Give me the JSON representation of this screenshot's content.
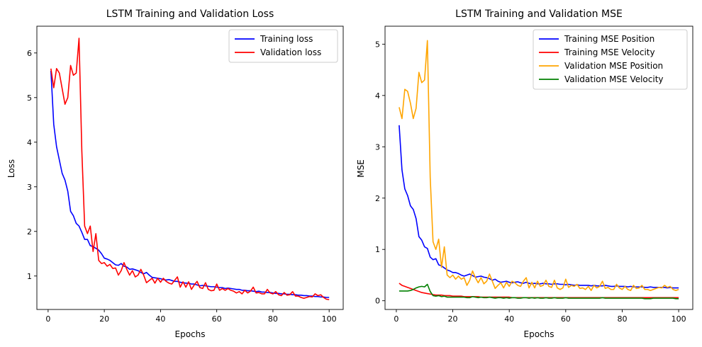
{
  "chart_data": [
    {
      "type": "line",
      "title": "LSTM Training and Validation Loss",
      "xlabel": "Epochs",
      "ylabel": "Loss",
      "xlim": [
        -4,
        105
      ],
      "ylim": [
        0.25,
        6.6
      ],
      "xticks": [
        0,
        20,
        40,
        60,
        80,
        100
      ],
      "yticks": [
        1,
        2,
        3,
        4,
        5,
        6
      ],
      "grid": false,
      "legend": "upper right",
      "x": [
        1,
        2,
        3,
        4,
        5,
        6,
        7,
        8,
        9,
        10,
        11,
        12,
        13,
        14,
        15,
        16,
        17,
        18,
        19,
        20,
        21,
        22,
        23,
        24,
        25,
        26,
        27,
        28,
        29,
        30,
        31,
        32,
        33,
        34,
        35,
        36,
        37,
        38,
        39,
        40,
        41,
        42,
        43,
        44,
        45,
        46,
        47,
        48,
        49,
        50,
        51,
        52,
        53,
        54,
        55,
        56,
        57,
        58,
        59,
        60,
        61,
        62,
        63,
        64,
        65,
        66,
        67,
        68,
        69,
        70,
        71,
        72,
        73,
        74,
        75,
        76,
        77,
        78,
        79,
        80,
        81,
        82,
        83,
        84,
        85,
        86,
        87,
        88,
        89,
        90,
        91,
        92,
        93,
        94,
        95,
        96,
        97,
        98,
        99,
        100
      ],
      "series": [
        {
          "name": "Training loss",
          "color": "#0000ff",
          "values": [
            5.6,
            4.4,
            3.9,
            3.6,
            3.3,
            3.15,
            2.9,
            2.45,
            2.35,
            2.18,
            2.12,
            1.98,
            1.82,
            1.82,
            1.68,
            1.66,
            1.62,
            1.58,
            1.5,
            1.4,
            1.38,
            1.35,
            1.3,
            1.25,
            1.24,
            1.28,
            1.22,
            1.2,
            1.15,
            1.16,
            1.14,
            1.12,
            1.08,
            1.05,
            1.08,
            1.02,
            0.97,
            0.96,
            0.95,
            0.94,
            0.92,
            0.91,
            0.92,
            0.9,
            0.88,
            0.88,
            0.86,
            0.85,
            0.84,
            0.84,
            0.82,
            0.82,
            0.8,
            0.78,
            0.79,
            0.78,
            0.77,
            0.76,
            0.76,
            0.75,
            0.74,
            0.74,
            0.72,
            0.73,
            0.72,
            0.71,
            0.7,
            0.7,
            0.68,
            0.68,
            0.67,
            0.67,
            0.66,
            0.65,
            0.66,
            0.64,
            0.64,
            0.63,
            0.63,
            0.62,
            0.61,
            0.61,
            0.6,
            0.6,
            0.59,
            0.59,
            0.58,
            0.58,
            0.57,
            0.57,
            0.56,
            0.56,
            0.55,
            0.55,
            0.54,
            0.54,
            0.53,
            0.53,
            0.52,
            0.52
          ]
        },
        {
          "name": "Validation loss",
          "color": "#ff0000",
          "values": [
            5.65,
            5.22,
            5.65,
            5.55,
            5.2,
            4.85,
            5.0,
            5.72,
            5.5,
            5.55,
            6.33,
            3.8,
            2.12,
            1.95,
            2.12,
            1.55,
            1.95,
            1.35,
            1.28,
            1.3,
            1.22,
            1.26,
            1.17,
            1.18,
            1.02,
            1.12,
            1.3,
            1.15,
            1.02,
            1.12,
            0.98,
            1.02,
            1.15,
            1.02,
            0.85,
            0.9,
            0.95,
            0.84,
            0.95,
            0.86,
            0.95,
            0.88,
            0.84,
            0.82,
            0.9,
            0.98,
            0.75,
            0.87,
            0.75,
            0.87,
            0.7,
            0.8,
            0.88,
            0.74,
            0.72,
            0.85,
            0.7,
            0.67,
            0.68,
            0.82,
            0.68,
            0.72,
            0.68,
            0.72,
            0.68,
            0.66,
            0.62,
            0.65,
            0.6,
            0.68,
            0.62,
            0.66,
            0.75,
            0.62,
            0.63,
            0.6,
            0.6,
            0.7,
            0.62,
            0.6,
            0.65,
            0.58,
            0.56,
            0.63,
            0.57,
            0.58,
            0.65,
            0.55,
            0.55,
            0.52,
            0.5,
            0.52,
            0.54,
            0.53,
            0.6,
            0.56,
            0.58,
            0.52,
            0.48,
            0.47
          ]
        }
      ]
    },
    {
      "type": "line",
      "title": "LSTM Training and Validation MSE",
      "xlabel": "Epochs",
      "ylabel": "MSE",
      "xlim": [
        -4,
        105
      ],
      "ylim": [
        -0.17,
        5.35
      ],
      "xticks": [
        0,
        20,
        40,
        60,
        80,
        100
      ],
      "yticks": [
        0,
        1,
        2,
        3,
        4,
        5
      ],
      "grid": false,
      "legend": "upper right",
      "x": [
        1,
        2,
        3,
        4,
        5,
        6,
        7,
        8,
        9,
        10,
        11,
        12,
        13,
        14,
        15,
        16,
        17,
        18,
        19,
        20,
        21,
        22,
        23,
        24,
        25,
        26,
        27,
        28,
        29,
        30,
        31,
        32,
        33,
        34,
        35,
        36,
        37,
        38,
        39,
        40,
        41,
        42,
        43,
        44,
        45,
        46,
        47,
        48,
        49,
        50,
        51,
        52,
        53,
        54,
        55,
        56,
        57,
        58,
        59,
        60,
        61,
        62,
        63,
        64,
        65,
        66,
        67,
        68,
        69,
        70,
        71,
        72,
        73,
        74,
        75,
        76,
        77,
        78,
        79,
        80,
        81,
        82,
        83,
        84,
        85,
        86,
        87,
        88,
        89,
        90,
        91,
        92,
        93,
        94,
        95,
        96,
        97,
        98,
        99,
        100
      ],
      "series": [
        {
          "name": "Training MSE Position",
          "color": "#0000ff",
          "values": [
            3.42,
            2.55,
            2.18,
            2.05,
            1.85,
            1.78,
            1.6,
            1.25,
            1.18,
            1.05,
            1.02,
            0.85,
            0.8,
            0.82,
            0.7,
            0.68,
            0.64,
            0.6,
            0.58,
            0.55,
            0.55,
            0.53,
            0.5,
            0.48,
            0.5,
            0.52,
            0.49,
            0.46,
            0.47,
            0.48,
            0.46,
            0.45,
            0.43,
            0.4,
            0.42,
            0.38,
            0.36,
            0.37,
            0.38,
            0.36,
            0.35,
            0.36,
            0.37,
            0.35,
            0.34,
            0.36,
            0.34,
            0.33,
            0.34,
            0.33,
            0.33,
            0.34,
            0.33,
            0.33,
            0.32,
            0.33,
            0.33,
            0.32,
            0.32,
            0.31,
            0.32,
            0.31,
            0.3,
            0.31,
            0.3,
            0.3,
            0.3,
            0.3,
            0.29,
            0.3,
            0.29,
            0.29,
            0.29,
            0.3,
            0.29,
            0.28,
            0.28,
            0.29,
            0.28,
            0.28,
            0.28,
            0.27,
            0.28,
            0.27,
            0.27,
            0.27,
            0.27,
            0.26,
            0.26,
            0.27,
            0.26,
            0.26,
            0.26,
            0.26,
            0.26,
            0.25,
            0.26,
            0.25,
            0.25,
            0.25
          ]
        },
        {
          "name": "Training MSE Velocity",
          "color": "#ff0000",
          "values": [
            0.34,
            0.3,
            0.28,
            0.26,
            0.24,
            0.22,
            0.2,
            0.18,
            0.16,
            0.15,
            0.14,
            0.13,
            0.12,
            0.11,
            0.11,
            0.11,
            0.1,
            0.1,
            0.1,
            0.09,
            0.09,
            0.09,
            0.09,
            0.08,
            0.08,
            0.08,
            0.08,
            0.08,
            0.08,
            0.07,
            0.07,
            0.07,
            0.07,
            0.07,
            0.07,
            0.07,
            0.07,
            0.07,
            0.07,
            0.07,
            0.06,
            0.06,
            0.06,
            0.06,
            0.06,
            0.06,
            0.06,
            0.06,
            0.06,
            0.06,
            0.06,
            0.06,
            0.06,
            0.06,
            0.06,
            0.06,
            0.06,
            0.06,
            0.06,
            0.06,
            0.06,
            0.06,
            0.06,
            0.06,
            0.06,
            0.06,
            0.06,
            0.06,
            0.06,
            0.06,
            0.06,
            0.06,
            0.06,
            0.06,
            0.06,
            0.06,
            0.06,
            0.06,
            0.06,
            0.06,
            0.06,
            0.06,
            0.06,
            0.06,
            0.06,
            0.06,
            0.06,
            0.06,
            0.06,
            0.06,
            0.06,
            0.06,
            0.06,
            0.06,
            0.06,
            0.06,
            0.06,
            0.06,
            0.06,
            0.06
          ]
        },
        {
          "name": "Validation MSE Position",
          "color": "#ffa500",
          "values": [
            3.77,
            3.55,
            4.12,
            4.08,
            3.85,
            3.55,
            3.75,
            4.45,
            4.25,
            4.3,
            5.07,
            2.4,
            1.15,
            1.0,
            1.2,
            0.65,
            1.05,
            0.5,
            0.45,
            0.5,
            0.42,
            0.48,
            0.42,
            0.45,
            0.3,
            0.4,
            0.58,
            0.45,
            0.35,
            0.45,
            0.33,
            0.38,
            0.52,
            0.38,
            0.24,
            0.3,
            0.35,
            0.25,
            0.36,
            0.28,
            0.38,
            0.35,
            0.3,
            0.28,
            0.38,
            0.45,
            0.25,
            0.36,
            0.25,
            0.38,
            0.28,
            0.3,
            0.4,
            0.28,
            0.26,
            0.4,
            0.25,
            0.22,
            0.25,
            0.42,
            0.26,
            0.3,
            0.28,
            0.32,
            0.24,
            0.25,
            0.22,
            0.28,
            0.2,
            0.3,
            0.25,
            0.28,
            0.38,
            0.24,
            0.26,
            0.22,
            0.22,
            0.32,
            0.25,
            0.22,
            0.28,
            0.22,
            0.2,
            0.3,
            0.24,
            0.25,
            0.3,
            0.22,
            0.22,
            0.2,
            0.22,
            0.24,
            0.26,
            0.25,
            0.3,
            0.26,
            0.28,
            0.22,
            0.2,
            0.22
          ]
        },
        {
          "name": "Validation MSE Velocity",
          "color": "#008000",
          "values": [
            0.19,
            0.19,
            0.19,
            0.19,
            0.2,
            0.22,
            0.25,
            0.27,
            0.28,
            0.27,
            0.32,
            0.18,
            0.1,
            0.09,
            0.1,
            0.08,
            0.09,
            0.07,
            0.07,
            0.07,
            0.07,
            0.07,
            0.07,
            0.07,
            0.06,
            0.06,
            0.08,
            0.07,
            0.06,
            0.07,
            0.06,
            0.06,
            0.07,
            0.06,
            0.05,
            0.06,
            0.06,
            0.05,
            0.06,
            0.05,
            0.06,
            0.06,
            0.05,
            0.05,
            0.06,
            0.06,
            0.05,
            0.06,
            0.05,
            0.06,
            0.05,
            0.05,
            0.06,
            0.05,
            0.05,
            0.06,
            0.05,
            0.05,
            0.05,
            0.06,
            0.05,
            0.05,
            0.05,
            0.05,
            0.05,
            0.05,
            0.05,
            0.05,
            0.05,
            0.05,
            0.05,
            0.05,
            0.06,
            0.05,
            0.05,
            0.05,
            0.05,
            0.05,
            0.05,
            0.05,
            0.05,
            0.05,
            0.05,
            0.05,
            0.05,
            0.05,
            0.05,
            0.04,
            0.04,
            0.04,
            0.05,
            0.05,
            0.05,
            0.05,
            0.05,
            0.05,
            0.05,
            0.05,
            0.04,
            0.04
          ]
        }
      ]
    }
  ]
}
